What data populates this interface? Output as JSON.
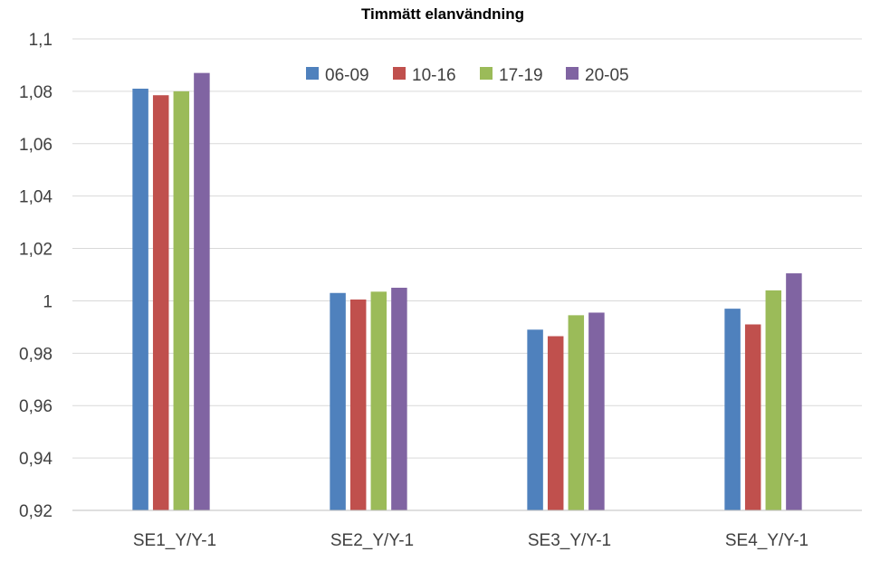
{
  "chart_data": {
    "type": "bar",
    "title": "Timmätt elanvändning",
    "xlabel": "",
    "ylabel": "",
    "categories": [
      "SE1_Y/Y-1",
      "SE2_Y/Y-1",
      "SE3_Y/Y-1",
      "SE4_Y/Y-1"
    ],
    "series": [
      {
        "name": "06-09",
        "color": "#4f81bd",
        "values": [
          1.081,
          1.003,
          0.989,
          0.997
        ]
      },
      {
        "name": "10-16",
        "color": "#c0504d",
        "values": [
          1.0785,
          1.0005,
          0.9865,
          0.991
        ]
      },
      {
        "name": "17-19",
        "color": "#9bbb59",
        "values": [
          1.08,
          1.0035,
          0.9945,
          1.004
        ]
      },
      {
        "name": "20-05",
        "color": "#8064a2",
        "values": [
          1.087,
          1.005,
          0.9955,
          1.0105
        ]
      }
    ],
    "ylim": [
      0.92,
      1.1
    ],
    "yticks": [
      0.92,
      0.94,
      0.96,
      0.98,
      1.0,
      1.02,
      1.04,
      1.06,
      1.08,
      1.1
    ],
    "ytick_labels": [
      "0,92",
      "0,94",
      "0,96",
      "0,98",
      "1",
      "1,02",
      "1,04",
      "1,06",
      "1,08",
      "1,1"
    ],
    "grid": true,
    "legend_position": "top-center"
  }
}
